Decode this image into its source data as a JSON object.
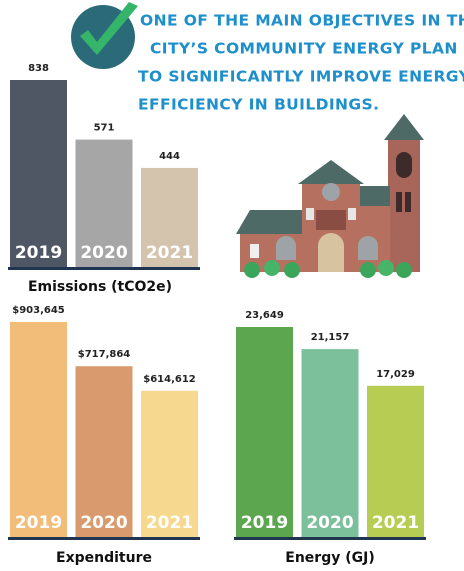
{
  "headline": [
    "ONE OF THE MAIN OBJECTIVES IN THE",
    "CITY’S COMMUNITY ENERGY PLAN IS",
    "TO SIGNIFICANTLY IMPROVE ENERGY",
    "EFFICIENCY IN BUILDINGS."
  ],
  "chart_data": [
    {
      "type": "bar",
      "title": "Emissions (tCO2e)",
      "categories": [
        "2019",
        "2020",
        "2021"
      ],
      "values": [
        838,
        571,
        444
      ],
      "colors": [
        "#4f5664",
        "#a6a6a6",
        "#d4c4ae"
      ]
    },
    {
      "type": "bar",
      "title": "Expenditure",
      "categories": [
        "2019",
        "2020",
        "2021"
      ],
      "values": [
        903645,
        717864,
        614612
      ],
      "value_labels": [
        "$903,645",
        "$717,864",
        "$614,612"
      ],
      "colors": [
        "#f1bd78",
        "#d99b6d",
        "#f6d98f"
      ]
    },
    {
      "type": "bar",
      "title": "Energy (GJ)",
      "categories": [
        "2019",
        "2020",
        "2021"
      ],
      "values": [
        23649,
        21157,
        17029
      ],
      "value_labels": [
        "23,649",
        "21,157",
        "17,029"
      ],
      "colors": [
        "#5ba64f",
        "#7cbf9b",
        "#b6cc52"
      ]
    }
  ]
}
